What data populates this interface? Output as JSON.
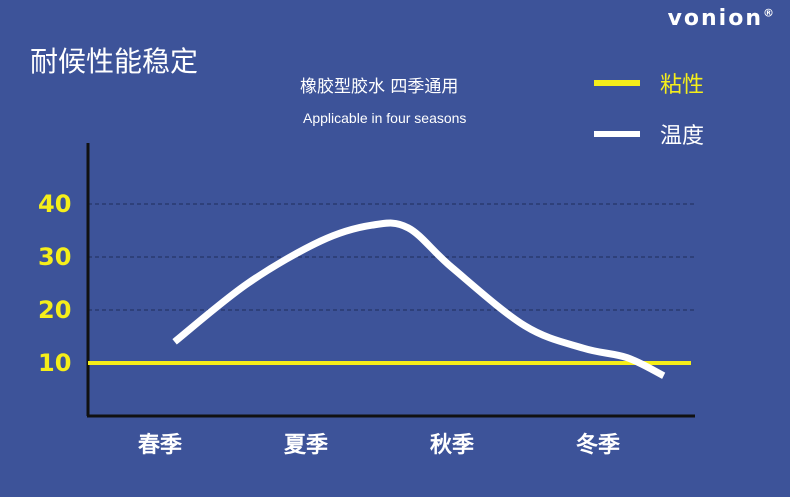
{
  "brand": {
    "name": "vonion",
    "mark": "®"
  },
  "title": "耐候性能稳定",
  "subtitle_cn": "橡胶型胶水 四季通用",
  "subtitle_en": "Applicable in four seasons",
  "colors": {
    "background": "#3d5399",
    "viscosity": "#f5ee1a",
    "temperature": "#ffffff",
    "grid": "#1e2c5a"
  },
  "chart_data": {
    "type": "line",
    "categories": [
      "春季",
      "夏季",
      "秋季",
      "冬季"
    ],
    "yticks": [
      10,
      20,
      30,
      40
    ],
    "ylim": [
      0,
      50
    ],
    "grid": "dashed horizontal",
    "legend_position": "top-right",
    "series": [
      {
        "name": "粘性",
        "color": "#f5ee1a",
        "points": [
          [
            0,
            10
          ],
          [
            3.3,
            10
          ]
        ]
      },
      {
        "name": "温度",
        "color": "#ffffff",
        "points": [
          [
            0.1,
            14
          ],
          [
            0.6,
            25
          ],
          [
            1.1,
            33
          ],
          [
            1.45,
            36
          ],
          [
            1.7,
            35.5
          ],
          [
            2.0,
            28
          ],
          [
            2.5,
            17
          ],
          [
            2.9,
            12.8
          ],
          [
            3.2,
            11
          ],
          [
            3.45,
            7.6
          ]
        ]
      }
    ]
  }
}
